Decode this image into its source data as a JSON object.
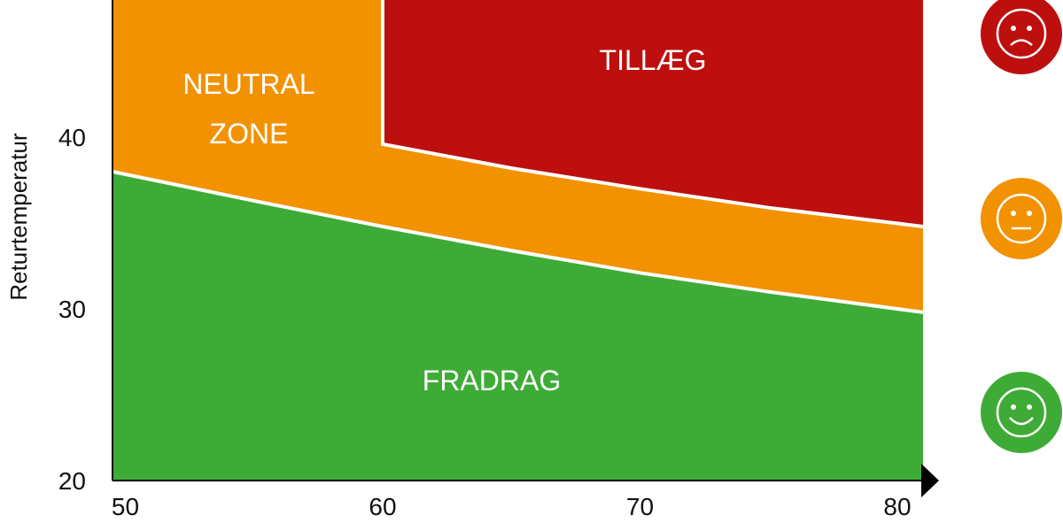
{
  "chart_data": {
    "type": "area",
    "ylabel": "Returtemperatur",
    "xlabel": "",
    "xlim": [
      49.5,
      81
    ],
    "ylim": [
      20,
      48
    ],
    "x_ticks": [
      "50",
      "60",
      "70",
      "80"
    ],
    "y_ticks": [
      "20",
      "30",
      "40"
    ],
    "zones": [
      {
        "key": "fradrag",
        "label": "FRADRAG",
        "color": "#3fab37"
      },
      {
        "key": "neutral",
        "label_lines": [
          "NEUTRAL",
          "ZONE"
        ],
        "color": "#f29200"
      },
      {
        "key": "tillaeg",
        "label": "TILLÆG",
        "color": "#be0f0f"
      }
    ],
    "lower_boundary": {
      "x": [
        49.5,
        55,
        60,
        65,
        70,
        75,
        81
      ],
      "y": [
        38.0,
        36.3,
        34.8,
        33.4,
        32.1,
        31.0,
        29.8
      ]
    },
    "upper_boundary": {
      "x": [
        60,
        65,
        70,
        75,
        81
      ],
      "y": [
        39.6,
        38.2,
        37.0,
        35.9,
        34.8
      ],
      "vertical_at_x": 60
    }
  },
  "faces": [
    {
      "name": "sad-face-icon",
      "mood": "sad",
      "color": "#be0f0f"
    },
    {
      "name": "neutral-face-icon",
      "mood": "neutral",
      "color": "#f29200"
    },
    {
      "name": "happy-face-icon",
      "mood": "happy",
      "color": "#3fab37"
    }
  ]
}
